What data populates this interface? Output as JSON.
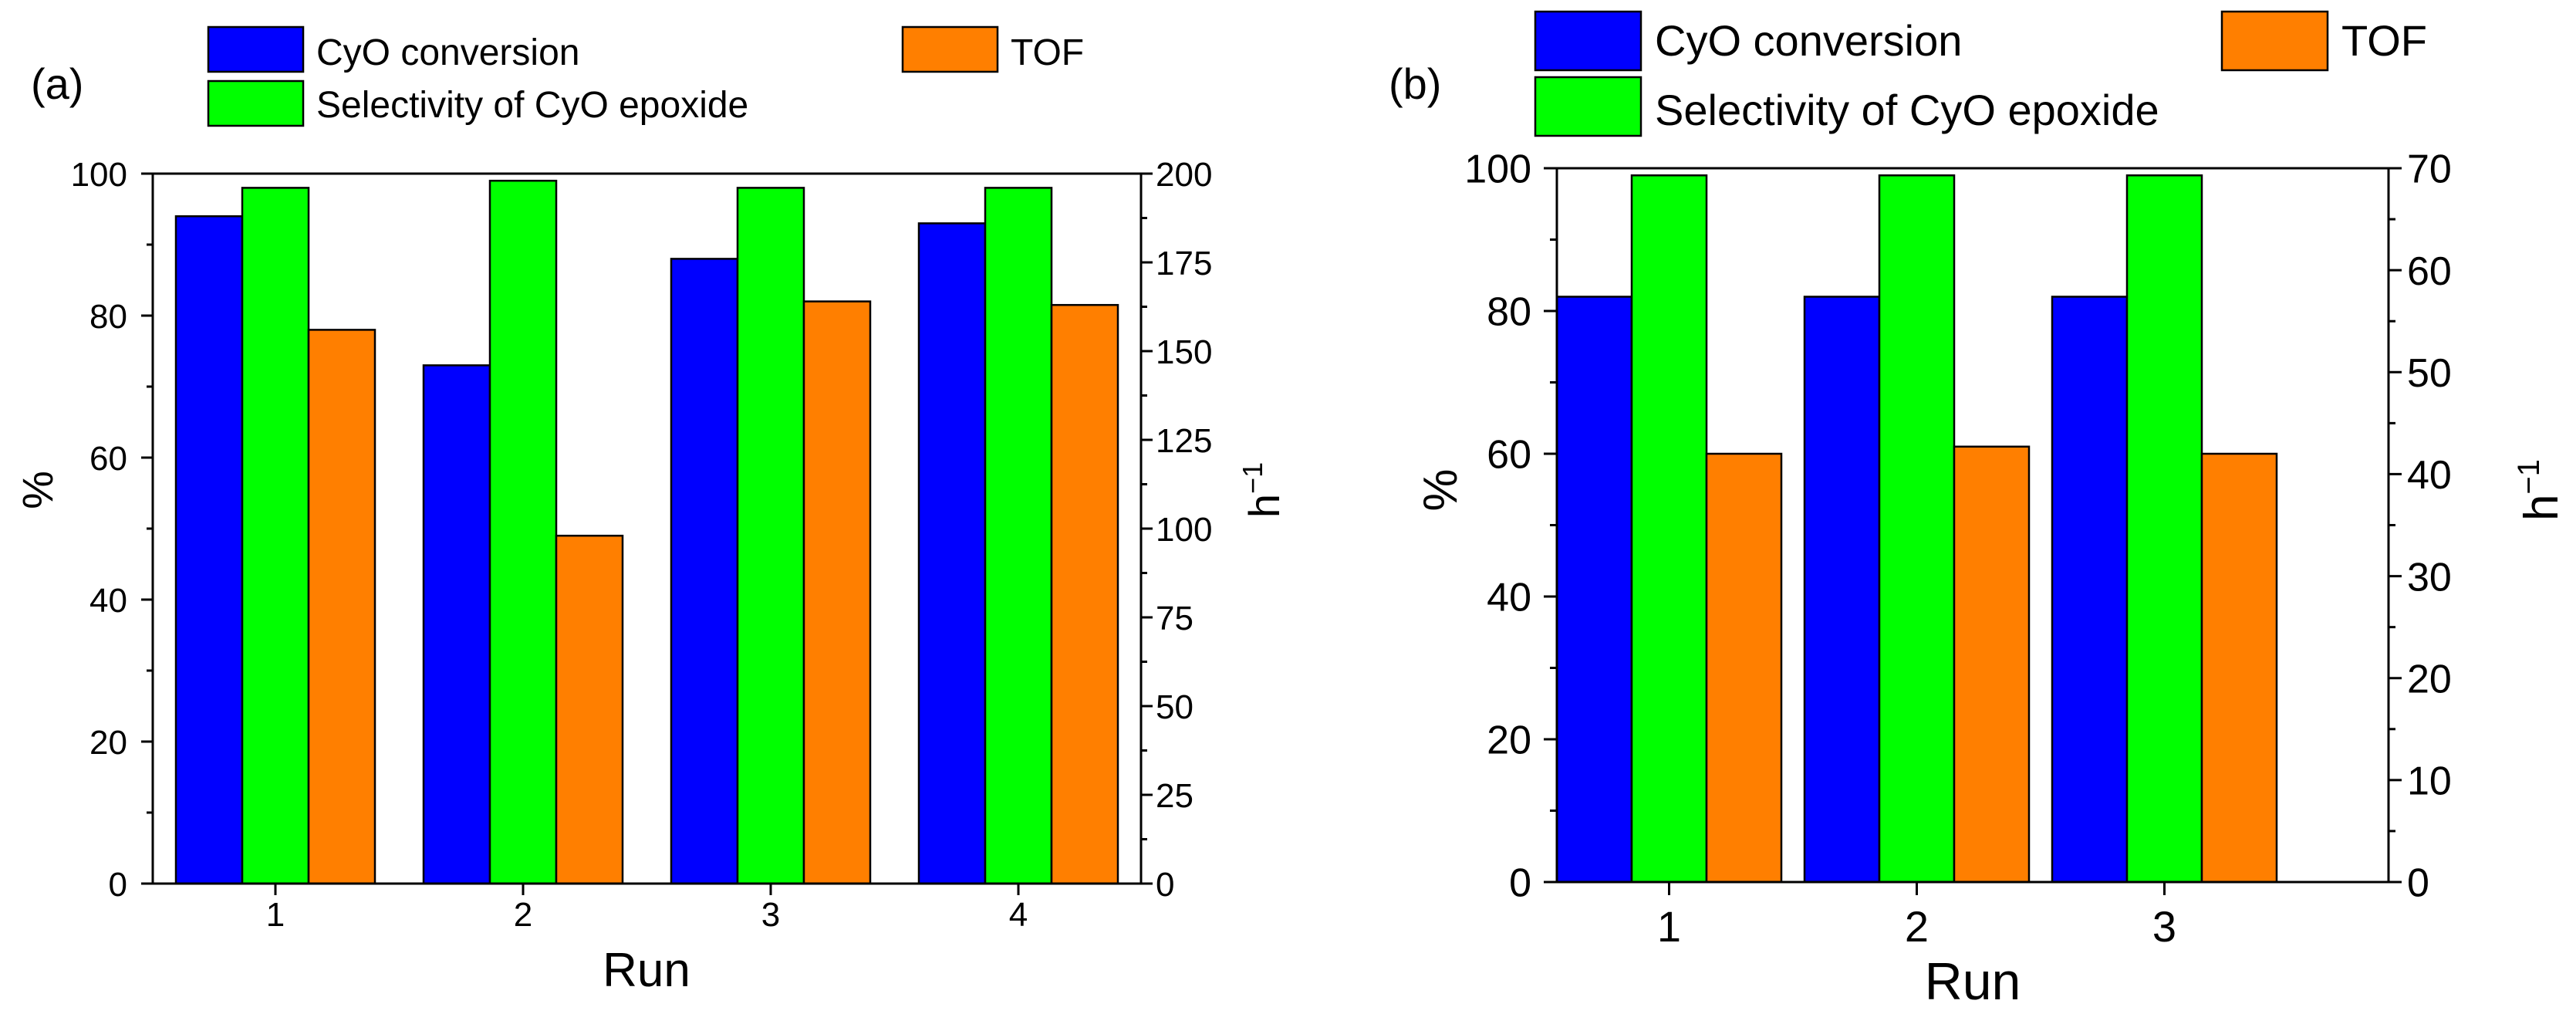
{
  "chart_data": [
    {
      "type": "bar",
      "panel_label": "(a)",
      "categories": [
        "1",
        "2",
        "3",
        "4"
      ],
      "xlabel": "Run",
      "ylabel": "%",
      "y2label_base": "h",
      "y2label_exp": "−1",
      "ylim": [
        0,
        100
      ],
      "y2lim": [
        0,
        200
      ],
      "yticks": [
        0,
        20,
        40,
        60,
        80,
        100
      ],
      "y2ticks": [
        0,
        25,
        50,
        75,
        100,
        125,
        150,
        175,
        200
      ],
      "legend": [
        "CyO conversion",
        "Selectivity of CyO epoxide",
        "TOF"
      ],
      "series": [
        {
          "name": "CyO conversion",
          "axis": "left",
          "color": "#0000ff",
          "values": [
            94,
            73,
            88,
            93
          ]
        },
        {
          "name": "Selectivity of CyO epoxide",
          "axis": "left",
          "color": "#00ff00",
          "values": [
            98,
            99,
            98,
            98
          ]
        },
        {
          "name": "TOF",
          "axis": "right",
          "color": "#ff7f00",
          "values": [
            156,
            98,
            164,
            163
          ]
        }
      ]
    },
    {
      "type": "bar",
      "panel_label": "(b)",
      "categories": [
        "1",
        "2",
        "3"
      ],
      "xlabel": "Run",
      "ylabel": "%",
      "y2label_base": "h",
      "y2label_exp": "−1",
      "ylim": [
        0,
        100
      ],
      "y2lim": [
        0,
        70
      ],
      "yticks": [
        0,
        20,
        40,
        60,
        80,
        100
      ],
      "y2ticks": [
        0,
        10,
        20,
        30,
        40,
        50,
        60,
        70
      ],
      "legend": [
        "CyO conversion",
        "Selectivity of CyO epoxide",
        "TOF"
      ],
      "series": [
        {
          "name": "CyO conversion",
          "axis": "left",
          "color": "#0000ff",
          "values": [
            82,
            82,
            82
          ]
        },
        {
          "name": "Selectivity of CyO epoxide",
          "axis": "left",
          "color": "#00ff00",
          "values": [
            99,
            99,
            99
          ]
        },
        {
          "name": "TOF",
          "axis": "right",
          "color": "#ff7f00",
          "values": [
            42,
            42.7,
            42
          ]
        }
      ]
    }
  ]
}
